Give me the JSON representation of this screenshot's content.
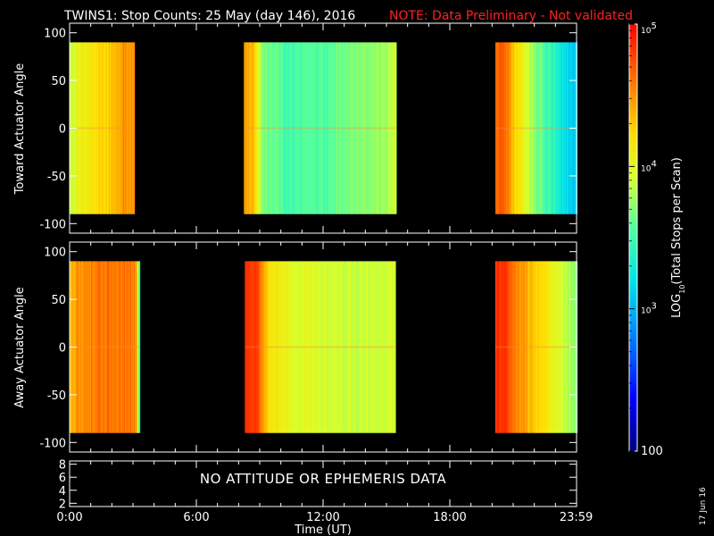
{
  "header": {
    "title": "TWINS1: Stop Counts: 25 May (day 146), 2016",
    "note": "NOTE: Data Preliminary - Not validated"
  },
  "footer": {
    "date_stamp": "17 Jun 16"
  },
  "colors": {
    "note": "#ff2020",
    "background": "#000000",
    "axes": "#ffffff"
  },
  "chart_data": [
    {
      "type": "heatmap",
      "ylabel": "Toward Actuator Angle",
      "ylim": [
        -110,
        110
      ],
      "yticks": [
        -100,
        -50,
        0,
        50,
        100
      ],
      "yrange_data": [
        -90,
        90
      ],
      "xlim_hours": [
        0,
        24
      ],
      "segments": [
        {
          "start_hours": 0.0,
          "end_hours": 3.05,
          "profile": [
            [
              0,
              3.9
            ],
            [
              0.2,
              4.1
            ],
            [
              0.4,
              4.15
            ],
            [
              0.5,
              4.2
            ],
            [
              0.7,
              4.35
            ],
            [
              0.85,
              4.5
            ],
            [
              1,
              4.5
            ]
          ]
        },
        {
          "start_hours": 8.25,
          "end_hours": 15.45,
          "profile": [
            [
              0,
              4.45
            ],
            [
              0.06,
              4.3
            ],
            [
              0.12,
              3.7
            ],
            [
              0.3,
              3.5
            ],
            [
              0.45,
              3.55
            ],
            [
              0.6,
              3.6
            ],
            [
              0.8,
              3.7
            ],
            [
              0.9,
              3.75
            ],
            [
              1,
              3.9
            ]
          ]
        },
        {
          "start_hours": 20.15,
          "end_hours": 24.0,
          "profile": [
            [
              0,
              4.65
            ],
            [
              0.08,
              4.7
            ],
            [
              0.2,
              4.4
            ],
            [
              0.35,
              4.0
            ],
            [
              0.5,
              3.7
            ],
            [
              0.7,
              3.4
            ],
            [
              0.85,
              3.2
            ],
            [
              1,
              3.0
            ]
          ]
        }
      ]
    },
    {
      "type": "heatmap",
      "ylabel": "Away Actuator Angle",
      "ylim": [
        -110,
        110
      ],
      "yticks": [
        -100,
        -50,
        0,
        50,
        100
      ],
      "yrange_data": [
        -90,
        90
      ],
      "xlim_hours": [
        0,
        24
      ],
      "segments": [
        {
          "start_hours": 0.0,
          "end_hours": 3.3,
          "profile": [
            [
              0,
              4.35
            ],
            [
              0.15,
              4.5
            ],
            [
              0.5,
              4.6
            ],
            [
              0.85,
              4.6
            ],
            [
              0.95,
              4.5
            ],
            [
              1,
              3.4
            ]
          ]
        },
        {
          "start_hours": 8.3,
          "end_hours": 15.4,
          "profile": [
            [
              0,
              4.8
            ],
            [
              0.08,
              4.75
            ],
            [
              0.15,
              4.2
            ],
            [
              0.35,
              3.95
            ],
            [
              0.6,
              3.9
            ],
            [
              0.8,
              3.85
            ],
            [
              1,
              3.9
            ]
          ]
        },
        {
          "start_hours": 20.15,
          "end_hours": 24.0,
          "profile": [
            [
              0,
              4.8
            ],
            [
              0.1,
              4.8
            ],
            [
              0.25,
              4.55
            ],
            [
              0.45,
              4.3
            ],
            [
              0.7,
              4.05
            ],
            [
              0.85,
              3.9
            ],
            [
              1,
              3.7
            ]
          ]
        }
      ]
    },
    {
      "type": "line",
      "ylim": [
        1.5,
        8.5
      ],
      "yticks": [
        2,
        4,
        6,
        8
      ],
      "message": "NO ATTITUDE OR EPHEMERIS DATA"
    }
  ],
  "xaxis": {
    "label": "Time (UT)",
    "tick_labels": [
      "0:00",
      "6:00",
      "12:00",
      "18:00",
      "23:59"
    ],
    "tick_hours": [
      0,
      6,
      12,
      18,
      23.983
    ]
  },
  "colorbar": {
    "label": "LOG10(Total Stops per Scan)",
    "label_prefix": "LOG",
    "label_sub": "10",
    "label_suffix": "(Total Stops per Scan)",
    "scale": "log",
    "range": [
      100,
      100000
    ],
    "ticks": [
      {
        "value": 100,
        "label": "100"
      },
      {
        "value": 1000,
        "label_base": "10",
        "label_exp": "3"
      },
      {
        "value": 10000,
        "label_base": "10",
        "label_exp": "4"
      },
      {
        "value": 100000,
        "label_base": "10",
        "label_exp": "5"
      }
    ]
  }
}
